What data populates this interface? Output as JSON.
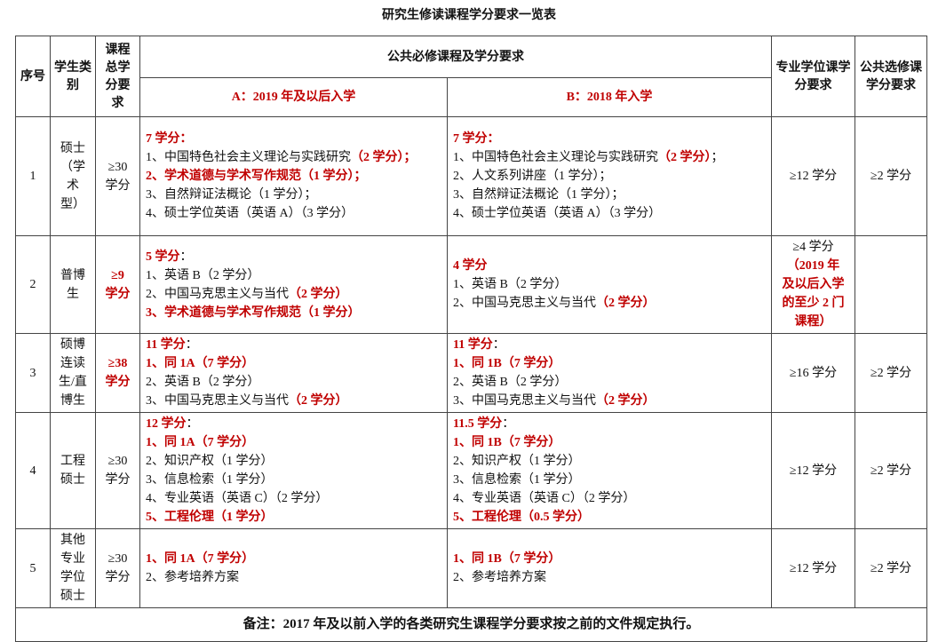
{
  "title": "研究生修读课程学分要求一览表",
  "header": {
    "no": "序号",
    "type": "学生类别",
    "total": "课程总学分要求",
    "public": "公共必修课程及学分要求",
    "a": "A：2019 年及以后入学",
    "b": "B：2018 年入学",
    "major": "专业学位课学分要求",
    "elective": "公共选修课学分要求"
  },
  "rows": [
    {
      "no": "1",
      "type": [
        [
          {
            "t": "硕士"
          }
        ],
        [
          {
            "t": "（学"
          }
        ],
        [
          {
            "t": "术"
          }
        ],
        [
          {
            "t": "型）"
          }
        ]
      ],
      "total": [
        [
          {
            "t": "≥30"
          }
        ],
        [
          {
            "t": "学分"
          }
        ]
      ],
      "a": [
        [
          {
            "t": "7 学分：",
            "r": true
          }
        ],
        [
          {
            "t": "1、中国特色社会主义理论与实践研究"
          },
          {
            "t": "（2 学分）；",
            "r": true
          }
        ],
        [
          {
            "t": "2、学术道德与学术写作规范（1 学分）；",
            "r": true
          }
        ],
        [
          {
            "t": "3、自然辩证法概论（1 学分）；"
          }
        ],
        [
          {
            "t": "4、硕士学位英语（英语 A）（3 学分）"
          }
        ]
      ],
      "b": [
        [
          {
            "t": "7 学分：",
            "r": true
          }
        ],
        [
          {
            "t": "1、中国特色社会主义理论与实践研究"
          },
          {
            "t": "（2 学分）",
            "r": true
          },
          {
            "t": "；"
          }
        ],
        [
          {
            "t": "2、人文系列讲座（1 学分）；"
          }
        ],
        [
          {
            "t": "3、自然辩证法概论（1 学分）；"
          }
        ],
        [
          {
            "t": "4、硕士学位英语（英语 A）（3 学分）"
          }
        ]
      ],
      "major": [
        [
          {
            "t": "≥12 学分"
          }
        ]
      ],
      "elective": "≥2 学分"
    },
    {
      "no": "2",
      "type": [
        [
          {
            "t": "普博"
          }
        ],
        [
          {
            "t": "生"
          }
        ]
      ],
      "total": [
        [
          {
            "t": "≥9",
            "r": true
          }
        ],
        [
          {
            "t": "学分",
            "r": true
          }
        ]
      ],
      "a": [
        [
          {
            "t": "5 学分",
            "r": true
          },
          {
            "t": "："
          }
        ],
        [
          {
            "t": "1、英语 B（2 学分）"
          }
        ],
        [
          {
            "t": "2、中国马克思主义与当代"
          },
          {
            "t": "（2 学分）",
            "r": true
          }
        ],
        [
          {
            "t": "3、学术道德与学术写作规范（1 学分）",
            "r": true
          }
        ]
      ],
      "b": [
        [
          {
            "t": "4 学分",
            "r": true
          }
        ],
        [
          {
            "t": "1、英语 B（2 学分）"
          }
        ],
        [
          {
            "t": "2、中国马克思主义与当代"
          },
          {
            "t": "（2 学分）",
            "r": true
          }
        ]
      ],
      "major": [
        [
          {
            "t": "≥4 学分"
          }
        ],
        [
          {
            "t": "（2019 年",
            "r": true
          }
        ],
        [
          {
            "t": "及以后入学",
            "r": true
          }
        ],
        [
          {
            "t": "的至少 2 门",
            "r": true
          }
        ],
        [
          {
            "t": "课程）",
            "r": true
          }
        ]
      ],
      "elective": ""
    },
    {
      "no": "3",
      "type": [
        [
          {
            "t": "硕博"
          }
        ],
        [
          {
            "t": "连读"
          }
        ],
        [
          {
            "t": "生/直"
          }
        ],
        [
          {
            "t": "博生"
          }
        ]
      ],
      "total": [
        [
          {
            "t": "≥38",
            "r": true
          }
        ],
        [
          {
            "t": "学分",
            "r": true
          }
        ]
      ],
      "a": [
        [
          {
            "t": "11 学分",
            "r": true
          },
          {
            "t": "："
          }
        ],
        [
          {
            "t": "1、同 1A（7 学分）",
            "r": true
          }
        ],
        [
          {
            "t": "2、英语 B（2 学分）"
          }
        ],
        [
          {
            "t": "3、中国马克思主义与当代"
          },
          {
            "t": "（2 学分）",
            "r": true
          }
        ]
      ],
      "b": [
        [
          {
            "t": "11 学分",
            "r": true
          },
          {
            "t": "："
          }
        ],
        [
          {
            "t": "1、同 1B（7 学分）",
            "r": true
          }
        ],
        [
          {
            "t": "2、英语 B（2 学分）"
          }
        ],
        [
          {
            "t": "3、中国马克思主义与当代"
          },
          {
            "t": "（2 学分）",
            "r": true
          }
        ]
      ],
      "major": [
        [
          {
            "t": "≥16 学分"
          }
        ]
      ],
      "elective": "≥2 学分"
    },
    {
      "no": "4",
      "type": [
        [
          {
            "t": "工程"
          }
        ],
        [
          {
            "t": "硕士"
          }
        ]
      ],
      "total": [
        [
          {
            "t": "≥30"
          }
        ],
        [
          {
            "t": "学分"
          }
        ]
      ],
      "a": [
        [
          {
            "t": "12 学分",
            "r": true
          },
          {
            "t": "："
          }
        ],
        [
          {
            "t": "1、同 1A（7 学分）",
            "r": true
          }
        ],
        [
          {
            "t": "2、知识产权（1 学分）"
          }
        ],
        [
          {
            "t": "3、信息检索（1 学分）"
          }
        ],
        [
          {
            "t": "4、专业英语（英语 C）（2 学分）"
          }
        ],
        [
          {
            "t": "5、工程伦理（1 学分）",
            "r": true
          }
        ]
      ],
      "b": [
        [
          {
            "t": "11.5 学分",
            "r": true
          },
          {
            "t": "："
          }
        ],
        [
          {
            "t": "1、同 1B（7 学分）",
            "r": true
          }
        ],
        [
          {
            "t": "2、知识产权（1 学分）"
          }
        ],
        [
          {
            "t": "3、信息检索（1 学分）"
          }
        ],
        [
          {
            "t": "4、专业英语（英语 C）（2 学分）"
          }
        ],
        [
          {
            "t": "5、工程伦理（0.5 学分）",
            "r": true
          }
        ]
      ],
      "major": [
        [
          {
            "t": "≥12 学分"
          }
        ]
      ],
      "elective": "≥2 学分"
    },
    {
      "no": "5",
      "type": [
        [
          {
            "t": "其他"
          }
        ],
        [
          {
            "t": "专业"
          }
        ],
        [
          {
            "t": "学位"
          }
        ],
        [
          {
            "t": "硕士"
          }
        ]
      ],
      "total": [
        [
          {
            "t": "≥30"
          }
        ],
        [
          {
            "t": "学分"
          }
        ]
      ],
      "a": [
        [
          {
            "t": "1、同 1A（7 学分）",
            "r": true
          }
        ],
        [
          {
            "t": "2、参考培养方案"
          }
        ]
      ],
      "b": [
        [
          {
            "t": "1、同 1B（7 学分）",
            "r": true
          }
        ],
        [
          {
            "t": "2、参考培养方案"
          }
        ]
      ],
      "major": [
        [
          {
            "t": "≥12 学分"
          }
        ]
      ],
      "elective": "≥2 学分"
    }
  ],
  "note": "备注：2017 年及以前入学的各类研究生课程学分要求按之前的文件规定执行。",
  "colors": {
    "red": "#c00000",
    "text": "#111111",
    "border": "#444444"
  }
}
